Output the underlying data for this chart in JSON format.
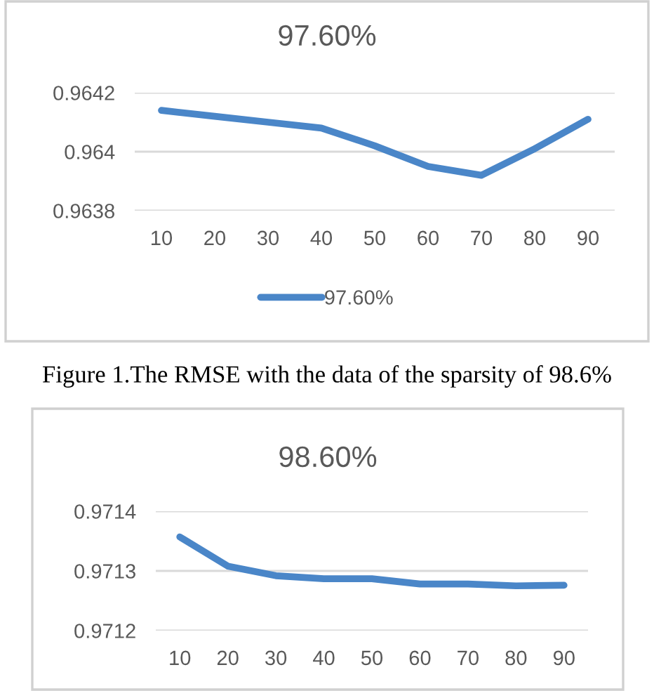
{
  "chart_data": [
    {
      "type": "line",
      "title": "97.60%",
      "categories": [
        "10",
        "20",
        "30",
        "40",
        "50",
        "60",
        "70",
        "80",
        "90"
      ],
      "series": [
        {
          "name": "97.60%",
          "color": "#4a86c8",
          "values": [
            0.96414,
            0.96412,
            0.9641,
            0.96408,
            0.96402,
            0.96395,
            0.96392,
            0.96401,
            0.96411
          ]
        }
      ],
      "ylim": [
        0.9638,
        0.9642
      ],
      "yticks": [
        0.9638,
        0.964,
        0.9642
      ],
      "grid": "y",
      "legend": "bottom",
      "marker": "none",
      "line_style": "solid",
      "annotations": [
        "Figure 1.The RMSE with the data of the sparsity of 98.6%"
      ]
    },
    {
      "type": "line",
      "title": "98.60%",
      "categories": [
        "10",
        "20",
        "30",
        "40",
        "50",
        "60",
        "70",
        "80",
        "90"
      ],
      "series": [
        {
          "color": "#4a86c8",
          "values": [
            0.971357,
            0.971308,
            0.971292,
            0.971287,
            0.971287,
            0.971278,
            0.971278,
            0.971275,
            0.971276
          ]
        }
      ],
      "ylim": [
        0.9712,
        0.9714
      ],
      "yticks": [
        0.9712,
        0.9713,
        0.9714
      ],
      "grid": "y",
      "legend": false,
      "marker": "none",
      "line_style": "solid"
    }
  ]
}
